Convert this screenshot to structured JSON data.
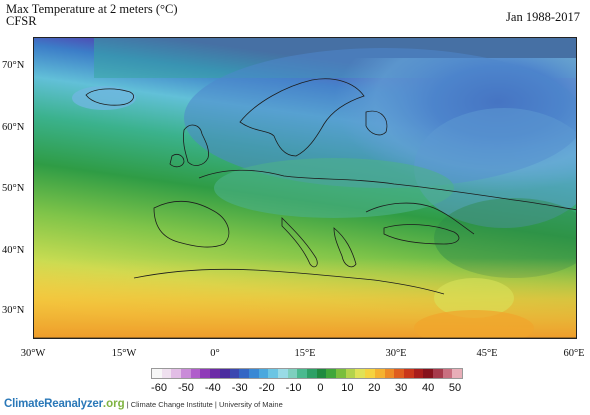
{
  "header": {
    "title": "Max Temperature at 2 meters (°C)",
    "subtitle": "CFSR",
    "period": "Jan 1988-2017"
  },
  "map": {
    "lat_labels": [
      "70°N",
      "60°N",
      "50°N",
      "40°N",
      "30°N"
    ],
    "lon_labels": [
      "30°W",
      "15°W",
      "0°",
      "15°E",
      "30°E",
      "45°E",
      "60°E"
    ]
  },
  "colorbar": {
    "labels": [
      "-60",
      "-50",
      "-40",
      "-30",
      "-20",
      "-10",
      "0",
      "10",
      "20",
      "30",
      "40",
      "50"
    ],
    "colors": [
      "#f7f7f7",
      "#efe0ef",
      "#e2bde6",
      "#c98bd8",
      "#b05ecb",
      "#8f3bb8",
      "#6c2aa6",
      "#4b2b9e",
      "#3b47b0",
      "#3466c4",
      "#3a88d4",
      "#4aa8de",
      "#6bc5e3",
      "#99dbe6",
      "#7ecfbe",
      "#4bb98f",
      "#2ea066",
      "#1f8a3f",
      "#3fa63a",
      "#79be3c",
      "#b3d34b",
      "#e0e256",
      "#f5d33f",
      "#f5b22f",
      "#ee8a25",
      "#df5d1f",
      "#c9361b",
      "#a81d1c",
      "#86121c",
      "#a63a4b",
      "#c96f80",
      "#e8aeb8"
    ]
  },
  "footer": {
    "brand": "ClimateReanalyzer",
    "brand_suffix": ".org",
    "institute": " | Climate Change Institute | University of Maine"
  }
}
